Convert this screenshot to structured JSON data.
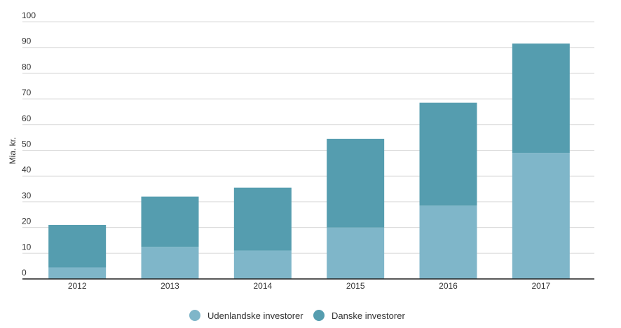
{
  "chart_data": {
    "type": "bar",
    "stacked": true,
    "categories": [
      "2012",
      "2013",
      "2014",
      "2015",
      "2016",
      "2017"
    ],
    "series": [
      {
        "name": "Udenlandske investorer",
        "color": "#7fb6c9",
        "values": [
          4.5,
          12.5,
          11,
          20,
          28.5,
          49
        ]
      },
      {
        "name": "Danske investorer",
        "color": "#559daf",
        "values": [
          16.5,
          19.5,
          24.5,
          34.5,
          40,
          42.5
        ]
      }
    ],
    "title": "",
    "xlabel": "",
    "ylabel": "Mia. kr.",
    "ylim": [
      0,
      100
    ],
    "yticks": [
      0,
      10,
      20,
      30,
      40,
      50,
      60,
      70,
      80,
      90,
      100
    ],
    "grid": true,
    "legend_position": "bottom-center"
  }
}
